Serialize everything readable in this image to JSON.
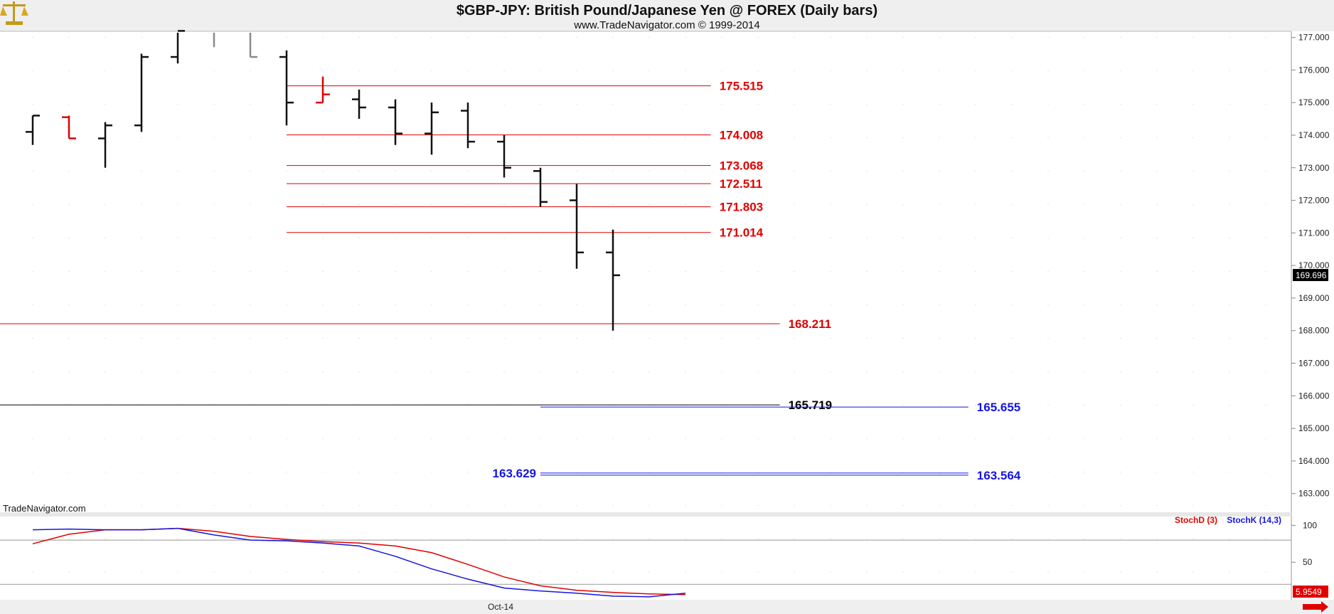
{
  "header": {
    "title": "$GBP-JPY:  British Pound/Japanese Yen @ FOREX  (Daily bars)",
    "subtitle": "www.TradeNavigator.com © 1999-2014"
  },
  "footer": {
    "watermark": "TradeNavigator.com",
    "month_label": "Oct-14"
  },
  "icons": {
    "logo": "scales-of-justice-icon",
    "scroll": "right-arrow-icon"
  },
  "chart_data": [
    {
      "type": "ohlc",
      "title": "$GBP-JPY:  British Pound/Japanese Yen @ FOREX  (Daily bars)",
      "ylim": [
        162.6,
        177.1
      ],
      "y_ticks": [
        "177.000",
        "176.000",
        "175.000",
        "174.000",
        "173.000",
        "172.000",
        "171.000",
        "170.000",
        "169.000",
        "168.000",
        "167.000",
        "166.000",
        "165.000",
        "164.000",
        "163.000"
      ],
      "last_price": "169.696",
      "bars": [
        {
          "o": 174.1,
          "h": 174.6,
          "l": 173.7,
          "c": 174.6,
          "color": "black"
        },
        {
          "o": 174.55,
          "h": 174.6,
          "l": 173.9,
          "c": 173.9,
          "color": "red"
        },
        {
          "o": 173.9,
          "h": 174.4,
          "l": 173.0,
          "c": 174.3,
          "color": "black"
        },
        {
          "o": 174.3,
          "h": 176.5,
          "l": 174.1,
          "c": 176.4,
          "color": "black"
        },
        {
          "o": 176.4,
          "h": 177.2,
          "l": 176.2,
          "c": 177.2,
          "color": "black"
        },
        {
          "o": null,
          "h": 177.2,
          "l": 176.7,
          "c": null,
          "color": "gray"
        },
        {
          "o": null,
          "h": 177.2,
          "l": 176.4,
          "c": 176.4,
          "color": "gray"
        },
        {
          "o": 176.4,
          "h": 176.6,
          "l": 174.3,
          "c": 175.0,
          "color": "black"
        },
        {
          "o": 175.0,
          "h": 175.8,
          "l": 175.0,
          "c": 175.25,
          "color": "red"
        },
        {
          "o": 175.1,
          "h": 175.4,
          "l": 174.5,
          "c": 174.85,
          "color": "black"
        },
        {
          "o": 174.85,
          "h": 175.1,
          "l": 173.7,
          "c": 174.05,
          "color": "black"
        },
        {
          "o": 174.05,
          "h": 175.0,
          "l": 173.4,
          "c": 174.7,
          "color": "black"
        },
        {
          "o": 174.75,
          "h": 175.0,
          "l": 173.6,
          "c": 173.8,
          "color": "black"
        },
        {
          "o": 173.8,
          "h": 174.0,
          "l": 172.7,
          "c": 173.0,
          "color": "black"
        },
        {
          "o": 172.9,
          "h": 173.0,
          "l": 171.8,
          "c": 171.95,
          "color": "black"
        },
        {
          "o": 172.0,
          "h": 172.5,
          "l": 169.9,
          "c": 170.4,
          "color": "black"
        },
        {
          "o": 170.4,
          "h": 171.1,
          "l": 168.0,
          "c": 169.7,
          "color": "black"
        }
      ],
      "levels": [
        {
          "value": 175.515,
          "label": "175.515",
          "color": "#e00000",
          "from_bar": 7,
          "to_bar": 18.7,
          "label_side": "right"
        },
        {
          "value": 174.008,
          "label": "174.008",
          "color": "#e00000",
          "from_bar": 7,
          "to_bar": 18.7,
          "label_side": "right"
        },
        {
          "value": 173.068,
          "label": "173.068",
          "color": "#e00000",
          "from_bar": 7,
          "to_bar": 18.7,
          "label_side": "right"
        },
        {
          "value": 172.511,
          "label": "172.511",
          "color": "#e00000",
          "from_bar": 7,
          "to_bar": 18.7,
          "label_side": "right"
        },
        {
          "value": 171.803,
          "label": "171.803",
          "color": "#e00000",
          "from_bar": 7,
          "to_bar": 18.7,
          "label_side": "right"
        },
        {
          "value": 171.014,
          "label": "171.014",
          "color": "#e00000",
          "from_bar": 7,
          "to_bar": 18.7,
          "label_side": "right"
        },
        {
          "value": 168.211,
          "label": "168.211",
          "color": "#e00000",
          "from_bar": -1,
          "to_bar": 20.6,
          "label_side": "right"
        },
        {
          "value": 165.719,
          "label": "165.719",
          "color": "#000000",
          "from_bar": -1,
          "to_bar": 20.6,
          "label_side": "right"
        },
        {
          "value": 165.655,
          "label": "165.655",
          "color": "#1515e0",
          "from_bar": 14.0,
          "to_bar": 25.8,
          "label_side": "right"
        },
        {
          "value": 163.629,
          "label": "163.629",
          "color": "#1515e0",
          "from_bar": 14.0,
          "to_bar": 25.8,
          "label_side": "left"
        },
        {
          "value": 163.564,
          "label": "163.564",
          "color": "#1515e0",
          "from_bar": 14.0,
          "to_bar": 25.8,
          "label_side": "right"
        }
      ]
    },
    {
      "type": "line",
      "title": "",
      "ylim": [
        0,
        112
      ],
      "y_ticks": [
        "100",
        "50"
      ],
      "reference_lines": [
        80,
        20
      ],
      "last_value": "5.9549",
      "series": [
        {
          "name": "StochD (3)",
          "color": "#e00000",
          "values": [
            75,
            88,
            94,
            94,
            96,
            92,
            85,
            81,
            78,
            76,
            72,
            63,
            47,
            30,
            18,
            12,
            9,
            7,
            6
          ]
        },
        {
          "name": "StochK (14,3)",
          "color": "#1515e0",
          "values": [
            94,
            95,
            94,
            94,
            96,
            87,
            80,
            79,
            76,
            72,
            58,
            41,
            27,
            15,
            11,
            8,
            4,
            3,
            8
          ]
        }
      ]
    }
  ]
}
